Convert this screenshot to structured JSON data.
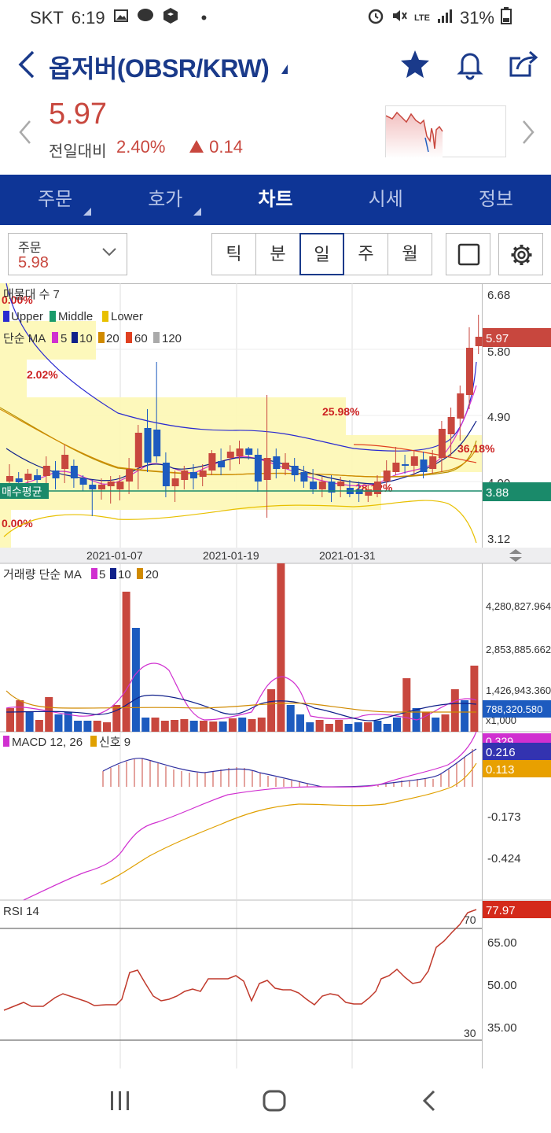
{
  "status": {
    "carrier": "SKT",
    "time": "6:19",
    "battery": "31%",
    "net": "LTE"
  },
  "header": {
    "title": "옵저버(OBSR/KRW)"
  },
  "quote": {
    "price": "5.97",
    "change_label": "전일대비",
    "change_pct": "2.40%",
    "change_amt": "0.14"
  },
  "tabs": [
    {
      "label": "주문"
    },
    {
      "label": "호가"
    },
    {
      "label": "차트"
    },
    {
      "label": "시세"
    },
    {
      "label": "정보"
    }
  ],
  "order_select": {
    "label": "주문",
    "value": "5.98"
  },
  "periods": [
    "틱",
    "분",
    "일",
    "주",
    "월"
  ],
  "chart": {
    "price_panel": {
      "indicator_title": "매물대 수 7",
      "bb_legend": [
        "Upper",
        "Middle",
        "Lower"
      ],
      "ma_legend_label": "단순 MA",
      "ma_legend": [
        "5",
        "10",
        "20",
        "60",
        "120"
      ],
      "y_ticks": [
        "6.68",
        "5.80",
        "4.90",
        "4.00",
        "3.12"
      ],
      "current_price": "5.97",
      "avg_buy_label": "매수평균",
      "avg_buy_value": "3.88",
      "profile_labels": [
        "0.00%",
        "2.02%",
        "25.98%",
        "36.18%",
        "28.12%",
        "0.00%"
      ],
      "x_dates": [
        "2021-01-07",
        "2021-01-19",
        "2021-01-31"
      ]
    },
    "volume_panel": {
      "title": "거래량 단순 MA",
      "ma_legend": [
        "5",
        "10",
        "20"
      ],
      "y_ticks": [
        "4,280,827.964",
        "2,853,885.662",
        "1,426,943.360"
      ],
      "current": "788,320.580",
      "unit": "x1,000"
    },
    "macd_panel": {
      "title": "MACD 12, 26",
      "signal_label": "신호 9",
      "macd_value": "0.329",
      "signal_value": "0.216",
      "hist_value": "0.113",
      "y_ticks": [
        "-0.173",
        "-0.424"
      ]
    },
    "rsi_panel": {
      "title": "RSI 14",
      "current": "77.97",
      "y_ticks": [
        "65.00",
        "50.00",
        "35.00"
      ],
      "upper_line": "70",
      "lower_line": "30"
    }
  },
  "colors": {
    "up": "#c8473e",
    "down": "#1d5bbf",
    "brand": "#0e3596",
    "avg_line": "#1a8a6a"
  }
}
